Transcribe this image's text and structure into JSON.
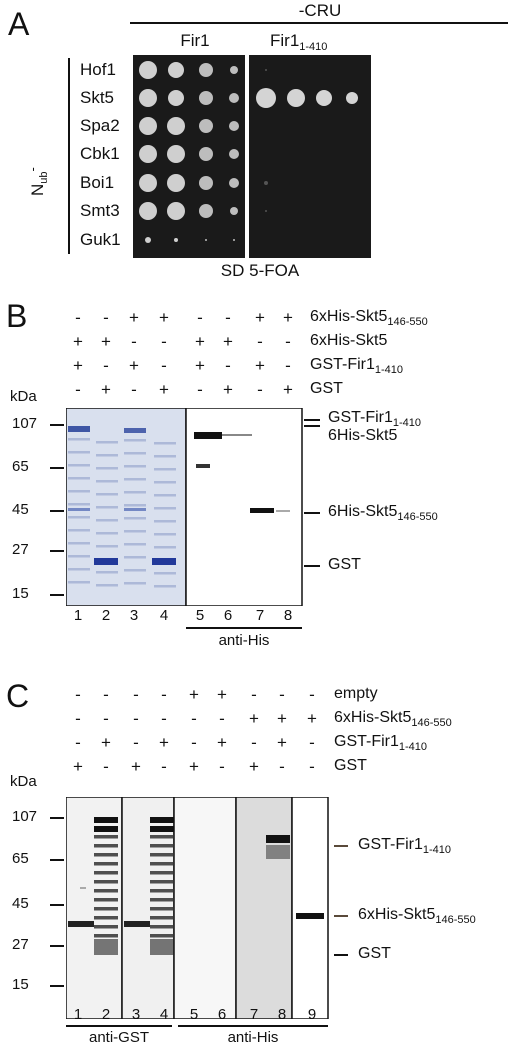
{
  "panelA": {
    "label": "A",
    "header": "-CRU",
    "col1": "Fir1",
    "col2": "Fir1",
    "col2_sub": "1-410",
    "side": "N",
    "side_sub": "ub",
    "side_sup": "-",
    "rows": [
      "Hof1",
      "Skt5",
      "Spa2",
      "Cbk1",
      "Boi1",
      "Smt3",
      "Guk1"
    ],
    "footer": "SD 5-FOA"
  },
  "panelB": {
    "label": "B",
    "signs": [
      {
        "vals": [
          "-",
          "-",
          "+",
          "+",
          "-",
          "-",
          "+",
          "+"
        ],
        "label": "6xHis-Skt5",
        "sub": "146-550"
      },
      {
        "vals": [
          "+",
          "+",
          "-",
          "-",
          "+",
          "+",
          "-",
          "-"
        ],
        "label": "6xHis-Skt5",
        "sub": ""
      },
      {
        "vals": [
          "+",
          "-",
          "+",
          "-",
          "+",
          "-",
          "+",
          "-"
        ],
        "label": "GST-Fir1",
        "sub": "1-410"
      },
      {
        "vals": [
          "-",
          "+",
          "-",
          "+",
          "-",
          "+",
          "-",
          "+"
        ],
        "label": "GST",
        "sub": ""
      }
    ],
    "kda": "kDa",
    "markers": [
      "107",
      "65",
      "45",
      "27",
      "15"
    ],
    "lanes": [
      "1",
      "2",
      "3",
      "4",
      "5",
      "6",
      "7",
      "8"
    ],
    "bands": [
      {
        "label": "GST-Fir1",
        "sub": "1-410"
      },
      {
        "label": "6His-Skt5",
        "sub": ""
      },
      {
        "label": "6His-Skt5",
        "sub": "146-550"
      },
      {
        "label": "GST",
        "sub": ""
      }
    ],
    "antibody": "anti-His"
  },
  "panelC": {
    "label": "C",
    "signs": [
      {
        "vals": [
          "-",
          "-",
          "-",
          "-",
          "+",
          "+",
          "-",
          "-",
          "-"
        ],
        "label": "empty",
        "sub": ""
      },
      {
        "vals": [
          "-",
          "-",
          "-",
          "-",
          "-",
          "-",
          "+",
          "+",
          "+"
        ],
        "label": "6xHis-Skt5",
        "sub": "146-550"
      },
      {
        "vals": [
          "-",
          "+",
          "-",
          "+",
          "-",
          "+",
          "-",
          "+",
          "-"
        ],
        "label": "GST-Fir1",
        "sub": "1-410"
      },
      {
        "vals": [
          "+",
          "-",
          "+",
          "-",
          "+",
          "-",
          "+",
          "-",
          "-"
        ],
        "label": "GST",
        "sub": ""
      }
    ],
    "kda": "kDa",
    "markers": [
      "107",
      "65",
      "45",
      "27",
      "15"
    ],
    "lanes": [
      "1",
      "2",
      "3",
      "4",
      "5",
      "6",
      "7",
      "8",
      "9"
    ],
    "bands": [
      {
        "label": "GST-Fir1",
        "sub": "1-410"
      },
      {
        "label": "6xHis-Skt5",
        "sub": "146-550"
      },
      {
        "label": "GST",
        "sub": ""
      }
    ],
    "antibody1": "anti-GST",
    "antibody2": "anti-His"
  }
}
